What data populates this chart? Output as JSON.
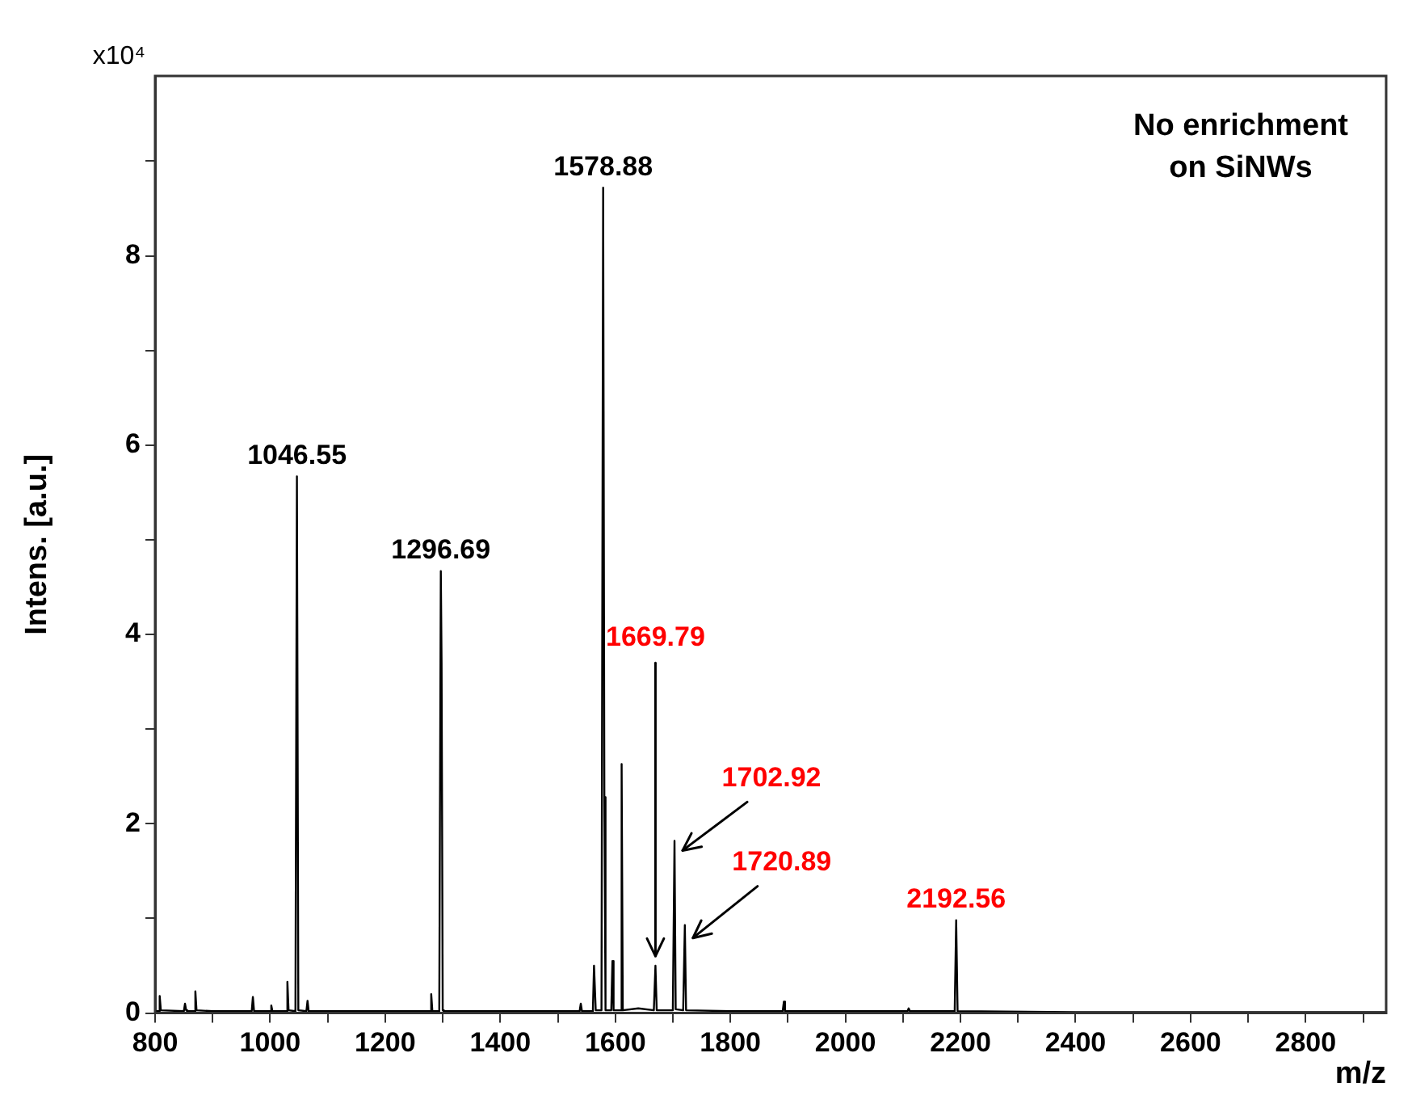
{
  "chart_data": {
    "type": "line",
    "xlabel": "m/z",
    "ylabel": "Intens. [a.u.]",
    "xlim": [
      800,
      2940
    ],
    "ylim": [
      0,
      9.9
    ],
    "xticks": [
      800,
      {
        "value": 900,
        "label": null
      },
      1000,
      {
        "value": 1100,
        "label": null
      },
      1200,
      {
        "value": 1300,
        "label": null
      },
      1400,
      {
        "value": 1500,
        "label": null
      },
      1600,
      {
        "value": 1700,
        "label": null
      },
      1800,
      {
        "value": 1900,
        "label": null
      },
      2000,
      {
        "value": 2100,
        "label": null
      },
      2200,
      {
        "value": 2300,
        "label": null
      },
      2400,
      {
        "value": 2500,
        "label": null
      },
      2600,
      {
        "value": 2700,
        "label": null
      },
      2800,
      {
        "value": 2900,
        "label": null
      }
    ],
    "yticks": [
      0,
      {
        "value": 1,
        "label": null
      },
      2,
      {
        "value": 3,
        "label": null
      },
      4,
      {
        "value": 5,
        "label": null
      },
      6,
      {
        "value": 7,
        "label": null
      },
      8,
      {
        "value": 9,
        "label": null
      }
    ],
    "grid": false,
    "legend": false,
    "marker": "none",
    "line_style": "solid",
    "series": [
      {
        "color": "#000000",
        "x": [
          800,
          806,
          808,
          810,
          850,
          852,
          854,
          856,
          868,
          870,
          872,
          900,
          968,
          970,
          972,
          1000,
          1002,
          1004,
          1028,
          1030,
          1032,
          1044,
          1046.55,
          1049,
          1063,
          1065,
          1067,
          1100,
          1278,
          1280,
          1282,
          1294,
          1296.69,
          1298,
          1300,
          1302,
          1400,
          1538,
          1540,
          1542,
          1561,
          1563,
          1566,
          1576,
          1578.88,
          1581,
          1583,
          1593,
          1595,
          1597,
          1609,
          1611,
          1613,
          1640,
          1667,
          1669.79,
          1672,
          1700,
          1702.92,
          1705,
          1718,
          1720.89,
          1723,
          1800,
          1891,
          1893,
          1895,
          2000,
          2108,
          2110,
          2112,
          2190,
          2192.56,
          2195,
          2400,
          2940
        ],
        "values": [
          0.02,
          0.02,
          0.18,
          0.03,
          0.02,
          0.1,
          0.03,
          0.02,
          0.02,
          0.23,
          0.03,
          0.02,
          0.02,
          0.17,
          0.02,
          0.02,
          0.08,
          0.02,
          0.02,
          0.33,
          0.03,
          0.02,
          5.67,
          0.03,
          0.02,
          0.13,
          0.02,
          0.02,
          0.02,
          0.2,
          0.02,
          0.02,
          4.67,
          3.7,
          0.03,
          0.02,
          0.02,
          0.02,
          0.1,
          0.02,
          0.02,
          0.5,
          0.03,
          0.03,
          8.72,
          2.28,
          0.03,
          0.03,
          0.55,
          0.03,
          0.03,
          2.63,
          0.03,
          0.05,
          0.03,
          0.5,
          0.03,
          0.03,
          1.82,
          0.04,
          0.03,
          0.93,
          0.03,
          0.02,
          0.02,
          0.12,
          0.02,
          0.02,
          0.02,
          0.05,
          0.02,
          0.02,
          0.98,
          0.02,
          0.01,
          0.01
        ]
      }
    ],
    "annotations": [
      "No enrichment on SiNWs",
      "x10⁴",
      {
        "text": "1046.55",
        "x": 1046.55,
        "y": 5.67
      },
      {
        "text": "1296.69",
        "x": 1296.69,
        "y": 4.67
      },
      {
        "text": "1578.88",
        "x": 1578.88,
        "y": 8.72
      },
      {
        "text": "1669.79",
        "x": 1669.79,
        "y": 0.5
      },
      {
        "text": "1702.92",
        "x": 1702.92,
        "y": 1.82
      },
      {
        "text": "1720.89",
        "x": 1720.89,
        "y": 0.93
      },
      {
        "text": "2192.56",
        "x": 2192.56,
        "y": 0.98
      }
    ]
  }
}
